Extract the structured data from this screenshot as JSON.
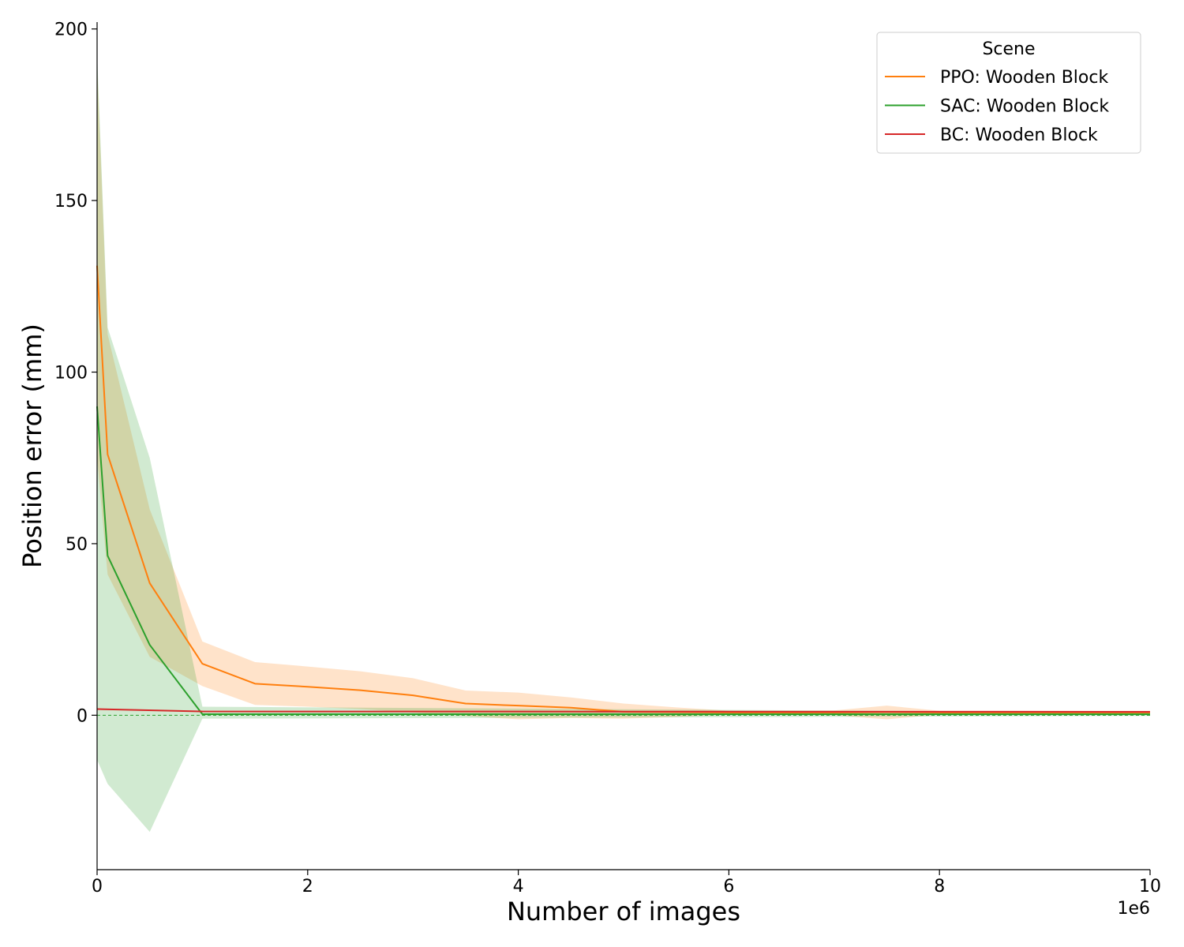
{
  "chart_data": {
    "type": "line",
    "title": "",
    "xlabel": "Number of images",
    "ylabel": "Position error (mm)",
    "x_offset_text": "1e6",
    "xlim": [
      0,
      10
    ],
    "ylim": [
      -45,
      202
    ],
    "x_ticks": [
      0,
      2,
      4,
      6,
      8,
      10
    ],
    "y_ticks": [
      0,
      50,
      100,
      150,
      200
    ],
    "grid": false,
    "legend": {
      "title": "Scene",
      "placement": "top-right"
    },
    "reference_line": {
      "y": 0,
      "color": "#2ca02c",
      "style": "dashed"
    },
    "series": [
      {
        "name": "PPO: Wooden Block",
        "color": "#ff7f0e",
        "x": [
          0,
          0.1,
          0.5,
          1,
          1.5,
          2,
          2.5,
          3,
          3.5,
          4,
          4.5,
          5,
          5.5,
          6,
          6.5,
          7,
          7.5,
          8,
          8.5,
          9,
          9.5,
          10
        ],
        "y": [
          131,
          76,
          38.5,
          15,
          9.2,
          8.3,
          7.3,
          5.8,
          3.4,
          2.8,
          2.2,
          1.0,
          0.9,
          0.8,
          0.8,
          0.8,
          0.9,
          0.8,
          0.8,
          0.8,
          0.8,
          0.8
        ],
        "lower": [
          75,
          41,
          17,
          8.5,
          3,
          2.5,
          1.8,
          0.8,
          -0.2,
          -1.2,
          -0.8,
          -1.0,
          -0.5,
          0.2,
          0.2,
          0.0,
          -1.2,
          0.2,
          0.2,
          0.2,
          0.2,
          0.2
        ],
        "upper": [
          190,
          111,
          60,
          21.5,
          15.5,
          14.2,
          12.8,
          10.8,
          7.2,
          6.6,
          5.2,
          3.4,
          2.3,
          1.3,
          1.3,
          1.4,
          2.8,
          1.3,
          1.3,
          1.3,
          1.3,
          1.3
        ]
      },
      {
        "name": "SAC: Wooden Block",
        "color": "#2ca02c",
        "x": [
          0,
          0.1,
          0.5,
          1,
          10
        ],
        "y": [
          90,
          46.5,
          20.5,
          0.3,
          0.3
        ],
        "lower": [
          -13,
          -20,
          -34,
          -1.0,
          -0.2
        ],
        "upper": [
          193,
          113,
          75,
          2.5,
          0.8
        ]
      },
      {
        "name": "BC: Wooden Block",
        "color": "#d62728",
        "x": [
          0,
          1,
          10
        ],
        "y": [
          1.8,
          1.1,
          1.0
        ],
        "lower": [
          1.6,
          1.0,
          0.9
        ],
        "upper": [
          2.0,
          1.2,
          1.1
        ]
      }
    ]
  }
}
